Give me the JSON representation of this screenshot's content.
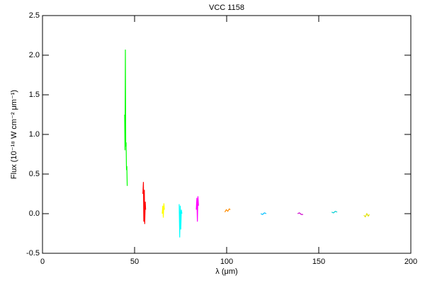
{
  "chart_data": {
    "type": "line",
    "title": "VCC 1158",
    "x_label": "λ (μm)",
    "y_label": "Flux (10⁻¹⁸ W cm⁻² μm⁻¹)",
    "xlim": [
      0,
      200
    ],
    "ylim": [
      -0.5,
      2.5
    ],
    "xticks": [
      0,
      50,
      100,
      150,
      200
    ],
    "yticks": [
      -0.5,
      {
        "value": 0,
        "label": "0.0"
      },
      0.5,
      {
        "value": 1,
        "label": "1.0"
      },
      1.5,
      {
        "value": 2,
        "label": "2.0"
      },
      2.5
    ],
    "series": [
      {
        "color": "#00ff00",
        "x": [
          44.6,
          44.8,
          45.0,
          45.2,
          45.4,
          45.6,
          45.8,
          46.0
        ],
        "values": [
          1.25,
          0.8,
          2.07,
          0.85,
          0.9,
          0.55,
          0.6,
          0.35
        ]
      },
      {
        "color": "#ff0000",
        "x": [
          54.5,
          54.8,
          55.0,
          55.3,
          55.5,
          55.8,
          56.0
        ],
        "values": [
          0.25,
          0.4,
          -0.1,
          0.3,
          -0.13,
          0.15,
          0.05
        ]
      },
      {
        "color": "#ffff00",
        "x": [
          65.0,
          65.3,
          65.6,
          65.9,
          66.2
        ],
        "values": [
          0.0,
          0.1,
          -0.05,
          0.13,
          0.05
        ]
      },
      {
        "color": "#00ffff",
        "x": [
          74.2,
          74.5,
          74.8,
          75.1,
          75.4,
          75.7
        ],
        "values": [
          0.12,
          -0.3,
          0.1,
          -0.2,
          0.05,
          0.0
        ]
      },
      {
        "color": "#ff00ff",
        "x": [
          83.5,
          83.8,
          84.1,
          84.4,
          84.7
        ],
        "values": [
          0.05,
          0.2,
          -0.1,
          0.22,
          0.1
        ]
      },
      {
        "color": "#ff8c00",
        "x": [
          99.0,
          99.8,
          100.6,
          101.4,
          102.0
        ],
        "values": [
          0.02,
          0.05,
          0.03,
          0.06,
          0.05
        ]
      },
      {
        "color": "#00bfff",
        "x": [
          118.5,
          119.5,
          120.5,
          121.5
        ],
        "values": [
          0.0,
          -0.01,
          0.01,
          0.0
        ]
      },
      {
        "color": "#cc00cc",
        "x": [
          138.5,
          139.5,
          140.5,
          141.5
        ],
        "values": [
          0.0,
          0.01,
          -0.01,
          -0.01
        ]
      },
      {
        "color": "#00ced1",
        "x": [
          157.0,
          158.0,
          159.0,
          160.0
        ],
        "values": [
          0.02,
          0.01,
          0.03,
          0.02
        ]
      },
      {
        "color": "#e0e000",
        "x": [
          174.5,
          175.3,
          176.1,
          176.9,
          177.5
        ],
        "values": [
          -0.02,
          -0.04,
          0.0,
          -0.03,
          -0.01
        ]
      }
    ]
  }
}
